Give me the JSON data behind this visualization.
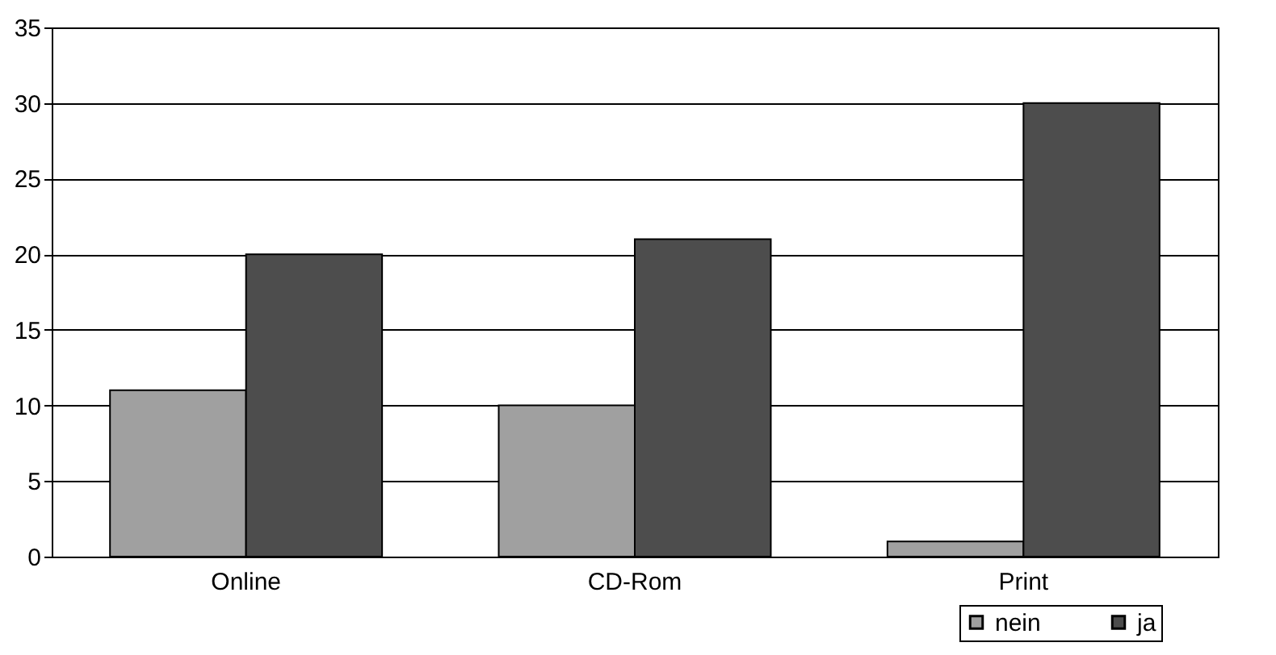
{
  "chart_data": {
    "type": "bar",
    "categories": [
      "Online",
      "CD-Rom",
      "Print"
    ],
    "series": [
      {
        "name": "nein",
        "color": "#a0a0a0",
        "values": [
          11,
          10,
          1
        ]
      },
      {
        "name": "ja",
        "color": "#4d4d4d",
        "values": [
          20,
          21,
          30
        ]
      }
    ],
    "ylim": [
      0,
      35
    ],
    "yticks": [
      0,
      5,
      10,
      15,
      20,
      25,
      30,
      35
    ],
    "grid": "y",
    "legend": "bottom right"
  }
}
